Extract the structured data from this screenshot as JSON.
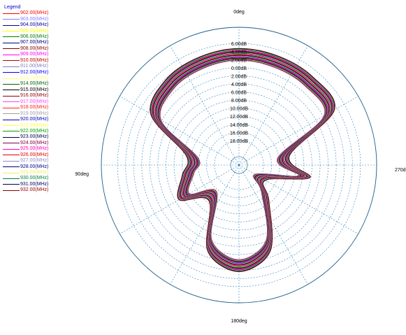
{
  "chart_data": {
    "type": "polar_line",
    "legend_title": "Legend",
    "angle_labels": [
      {
        "deg": 0,
        "text": "0deg"
      },
      {
        "deg": 90,
        "text": "90deg"
      },
      {
        "deg": 180,
        "text": "180deg"
      },
      {
        "deg": 270,
        "text": "270deg"
      }
    ],
    "radial_ticks": [
      {
        "db": 6,
        "label": "6.00dB"
      },
      {
        "db": 4,
        "label": "4.00dB"
      },
      {
        "db": 2,
        "label": "2.00dB"
      },
      {
        "db": 0,
        "label": "0.00dB"
      },
      {
        "db": -2,
        "label": "2.00dB"
      },
      {
        "db": -4,
        "label": "4.00dB"
      },
      {
        "db": -6,
        "label": "6.00dB"
      },
      {
        "db": -8,
        "label": "8.00dB"
      },
      {
        "db": -10,
        "label": "10.00dB"
      },
      {
        "db": -12,
        "label": "12.00dB"
      },
      {
        "db": -14,
        "label": "14.00dB"
      },
      {
        "db": -16,
        "label": "16.00dB"
      },
      {
        "db": -18,
        "label": "18.00dB"
      }
    ],
    "rlim": [
      -22,
      10
    ],
    "angles_deg": [
      0,
      20,
      40,
      60,
      80,
      100,
      120,
      140,
      160,
      180,
      200,
      220,
      240,
      260,
      280,
      300,
      320,
      340
    ],
    "base_gain_db": [
      3.0,
      2.6,
      2.0,
      -0.6,
      -12.6,
      -11.6,
      -8.7,
      -14.3,
      -3.2,
      0.5,
      -3.2,
      -14.3,
      -18.3,
      -8.0,
      -13.2,
      1.4,
      2.6,
      2.8
    ],
    "series": [
      {
        "name": "902.00(MHz)",
        "color": "#ff0000",
        "offset_db": -1.2
      },
      {
        "name": "903.00(MHz)",
        "color": "#8080ff",
        "offset_db": -1.1
      },
      {
        "name": "904.00(MHz)",
        "color": "#0000a0",
        "offset_db": -1.0
      },
      {
        "name": "905.00(MHz)",
        "color": "#ffff00",
        "offset_db": -0.9
      },
      {
        "name": "906.00(MHz)",
        "color": "#008000",
        "offset_db": -0.8
      },
      {
        "name": "907.00(MHz)",
        "color": "#000080",
        "offset_db": -0.7
      },
      {
        "name": "908.00(MHz)",
        "color": "#800000",
        "offset_db": -0.6
      },
      {
        "name": "909.00(MHz)",
        "color": "#ff00ff",
        "offset_db": -0.5
      },
      {
        "name": "910.00(MHz)",
        "color": "#c00000",
        "offset_db": -0.4
      },
      {
        "name": "911.00(MHz)",
        "color": "#8080c0",
        "offset_db": -0.3
      },
      {
        "name": "912.00(MHz)",
        "color": "#0000ff",
        "offset_db": -0.2
      },
      {
        "name": "913.00(MHz)",
        "color": "#ffff80",
        "offset_db": -0.1
      },
      {
        "name": "914.00(MHz)",
        "color": "#006400",
        "offset_db": 0.0
      },
      {
        "name": "915.00(MHz)",
        "color": "#000000",
        "offset_db": 0.1
      },
      {
        "name": "916.00(MHz)",
        "color": "#8b0000",
        "offset_db": 0.2
      },
      {
        "name": "917.00(MHz)",
        "color": "#ff40ff",
        "offset_db": 0.3
      },
      {
        "name": "918.00(MHz)",
        "color": "#ff2020",
        "offset_db": 0.4
      },
      {
        "name": "919.00(MHz)",
        "color": "#a0a0a0",
        "offset_db": 0.5
      },
      {
        "name": "920.00(MHz)",
        "color": "#0000c0",
        "offset_db": 0.6
      },
      {
        "name": "921.00(MHz)",
        "color": "#ffff40",
        "offset_db": 0.7
      },
      {
        "name": "922.00(MHz)",
        "color": "#00a000",
        "offset_db": 0.8
      },
      {
        "name": "923.00(MHz)",
        "color": "#000040",
        "offset_db": 0.9
      },
      {
        "name": "924.00(MHz)",
        "color": "#800040",
        "offset_db": 1.0
      },
      {
        "name": "925.00(MHz)",
        "color": "#ff00c0",
        "offset_db": 1.1
      },
      {
        "name": "926.00(MHz)",
        "color": "#e00000",
        "offset_db": 1.2
      },
      {
        "name": "927.00(MHz)",
        "color": "#9090d0",
        "offset_db": 1.3
      },
      {
        "name": "928.00(MHz)",
        "color": "#000090",
        "offset_db": 1.4
      },
      {
        "name": "929.00(MHz)",
        "color": "#f0f060",
        "offset_db": 1.5
      },
      {
        "name": "930.00(MHz)",
        "color": "#008040",
        "offset_db": 1.6
      },
      {
        "name": "931.00(MHz)",
        "color": "#000060",
        "offset_db": 1.7
      },
      {
        "name": "932.00(MHz)",
        "color": "#900000",
        "offset_db": 1.8
      }
    ]
  }
}
